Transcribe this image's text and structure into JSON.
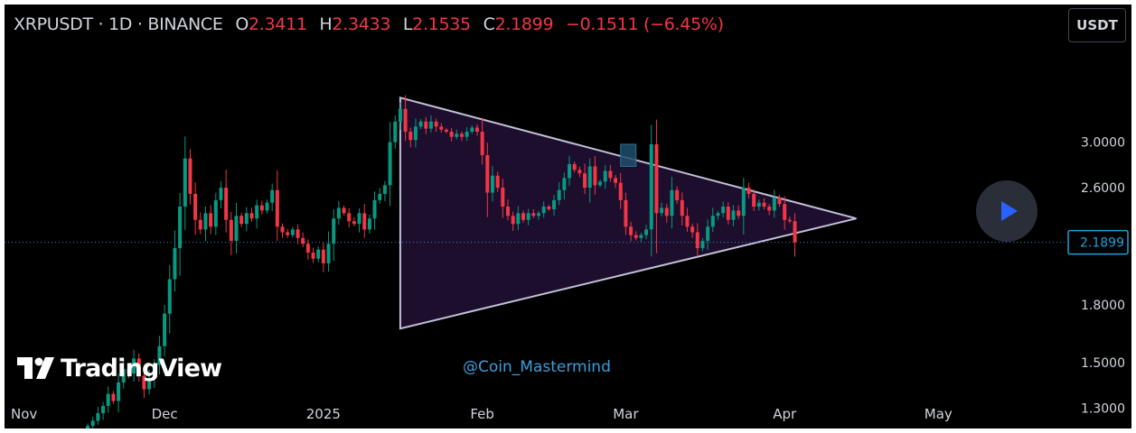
{
  "header": {
    "symbol": "XRPUSDT · 1D · BINANCE",
    "open_label": "O",
    "open": "2.3411",
    "high_label": "H",
    "high": "2.3433",
    "low_label": "L",
    "low": "2.1535",
    "close_label": "C",
    "close": "2.1899",
    "change": "−0.1511 (−6.45%)"
  },
  "quote_currency": "USDT",
  "watermark": "@Coin_Mastermind",
  "logo_text": "TradingView",
  "icons": {
    "logo": "tradingview-logo-icon",
    "play": "play-icon"
  },
  "colors": {
    "up": "#089981",
    "down": "#f23645",
    "background": "#000000",
    "pattern_fill": "#1e0f2e",
    "pattern_stroke": "#c2c0d8",
    "price_line": "#2a8fc2",
    "price_label": "#1ea1d9"
  },
  "chart_data": {
    "type": "candlestick",
    "scale": "log",
    "ylim": [
      1.22,
      3.9
    ],
    "grid": false,
    "xlabels": [
      {
        "label": "Nov",
        "date": "2024-11-01"
      },
      {
        "label": "Dec",
        "date": "2024-12-01"
      },
      {
        "label": "2025",
        "date": "2025-01-01"
      },
      {
        "label": "Feb",
        "date": "2025-02-01"
      },
      {
        "label": "Mar",
        "date": "2025-03-01"
      },
      {
        "label": "Apr",
        "date": "2025-04-01"
      },
      {
        "label": "May",
        "date": "2025-05-01"
      }
    ],
    "yticks": [
      {
        "label": "3.0000",
        "value": 3.0
      },
      {
        "label": "2.6000",
        "value": 2.6
      },
      {
        "label": "1.8000",
        "value": 1.8
      },
      {
        "label": "1.5000",
        "value": 1.5
      },
      {
        "label": "1.3000",
        "value": 1.3
      }
    ],
    "last_price": {
      "label": "2.1899",
      "value": 2.1899
    },
    "first_candle_date": "2024-11-16",
    "closes": [
      1.23,
      1.25,
      1.28,
      1.31,
      1.36,
      1.33,
      1.41,
      1.47,
      1.45,
      1.52,
      1.44,
      1.38,
      1.43,
      1.49,
      1.58,
      1.75,
      1.95,
      2.15,
      2.45,
      2.85,
      2.55,
      2.35,
      2.28,
      2.4,
      2.3,
      2.5,
      2.6,
      2.35,
      2.2,
      2.38,
      2.32,
      2.4,
      2.36,
      2.46,
      2.42,
      2.48,
      2.58,
      2.3,
      2.26,
      2.24,
      2.28,
      2.22,
      2.18,
      2.12,
      2.08,
      2.14,
      2.05,
      2.18,
      2.36,
      2.44,
      2.4,
      2.34,
      2.32,
      2.4,
      2.28,
      2.36,
      2.5,
      2.55,
      2.62,
      3.0,
      3.2,
      3.33,
      3.1,
      3.02,
      3.15,
      3.2,
      3.13,
      3.2,
      3.15,
      3.12,
      3.1,
      3.05,
      3.08,
      3.05,
      3.1,
      3.14,
      3.1,
      2.88,
      2.56,
      2.7,
      2.6,
      2.45,
      2.38,
      2.32,
      2.4,
      2.35,
      2.4,
      2.38,
      2.4,
      2.45,
      2.43,
      2.5,
      2.58,
      2.68,
      2.8,
      2.75,
      2.72,
      2.6,
      2.78,
      2.62,
      2.65,
      2.74,
      2.68,
      2.64,
      2.5,
      2.3,
      2.24,
      2.22,
      2.24,
      2.28,
      2.98,
      2.4,
      2.44,
      2.38,
      2.58,
      2.5,
      2.38,
      2.3,
      2.26,
      2.15,
      2.2,
      2.3,
      2.38,
      2.4,
      2.45,
      2.35,
      2.42,
      2.38,
      2.6,
      2.55,
      2.45,
      2.48,
      2.45,
      2.42,
      2.52,
      2.47,
      2.35,
      2.34,
      2.19
    ],
    "patterns": [
      {
        "type": "triangle",
        "points": [
          {
            "date": "2025-01-16",
            "price": 3.45
          },
          {
            "date": "2025-04-15",
            "price": 2.36
          },
          {
            "date": "2025-01-16",
            "price": 1.67
          }
        ]
      },
      {
        "type": "highlight",
        "date_from": "2025-02-28",
        "date_to": "2025-03-03",
        "price_low": 2.78,
        "price_high": 2.98
      }
    ]
  }
}
